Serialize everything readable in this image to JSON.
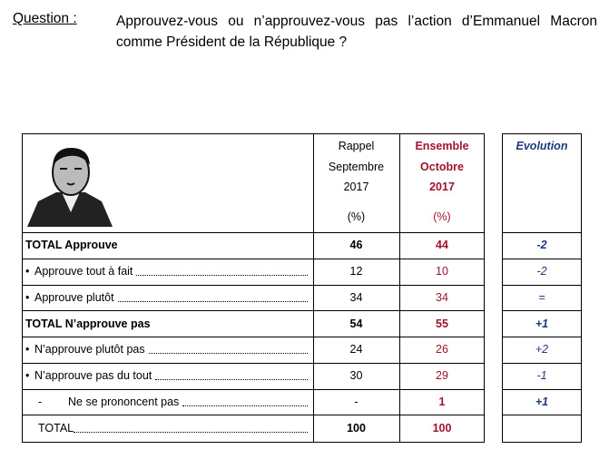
{
  "question": {
    "label": "Question :",
    "text": "Approuvez-vous ou n’approuvez-vous pas l’action d’Emmanuel Macron comme Président de la République ?"
  },
  "table": {
    "headers": {
      "rappel": [
        "Rappel",
        "Septembre",
        "2017",
        "(%)"
      ],
      "ensemble": [
        "Ensemble",
        "Octobre",
        "2017",
        "(%)"
      ],
      "evolution": "Evolution"
    },
    "rows": [
      {
        "label": "TOTAL Approuve",
        "rappel": "46",
        "ensemble": "44",
        "evolution": "-2"
      },
      {
        "bullet": "•",
        "label": "Approuve tout à fait",
        "rappel": "12",
        "ensemble": "10",
        "evolution": "-2"
      },
      {
        "bullet": "•",
        "label": "Approuve plutôt",
        "rappel": "34",
        "ensemble": "34",
        "evolution": "="
      },
      {
        "label": "TOTAL N’approuve pas",
        "rappel": "54",
        "ensemble": "55",
        "evolution": "+1"
      },
      {
        "bullet": "•",
        "label": "N’approuve plutôt pas",
        "rappel": "24",
        "ensemble": "26",
        "evolution": "+2"
      },
      {
        "bullet": "•",
        "label": "N’approuve pas du tout",
        "rappel": "30",
        "ensemble": "29",
        "evolution": "-1"
      },
      {
        "bullet": "-",
        "label": "Ne se prononcent pas",
        "rappel": "-",
        "ensemble": "1",
        "evolution": "+1"
      },
      {
        "label": "TOTAL",
        "rappel": "100",
        "ensemble": "100"
      }
    ]
  }
}
